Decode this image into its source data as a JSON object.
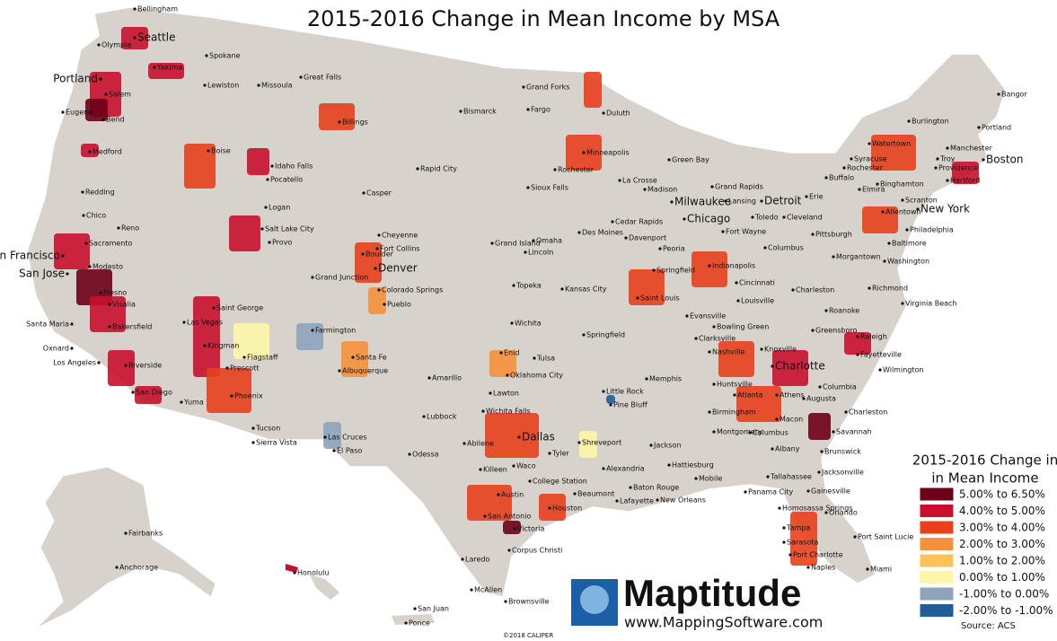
{
  "title": "2015-2016 Change in Mean Income by MSA",
  "legend": {
    "title_lines": [
      "2015-2016 Change in",
      "in Mean Income"
    ],
    "items": [
      {
        "label": "5.00% to 6.50%",
        "color": "#6d0019"
      },
      {
        "label": "4.00% to 5.00%",
        "color": "#c8102e"
      },
      {
        "label": "3.00% to 4.00%",
        "color": "#e8401c"
      },
      {
        "label": "2.00% to 3.00%",
        "color": "#f5913d"
      },
      {
        "label": "1.00% to 2.00%",
        "color": "#fbc25a"
      },
      {
        "label": "0.00% to 1.00%",
        "color": "#fdf6a8"
      },
      {
        "label": "-1.00% to 0.00%",
        "color": "#8fa3bd"
      },
      {
        "label": "-2.00% to -1.00%",
        "color": "#1f5c99"
      }
    ]
  },
  "places": [
    "Bellingham",
    "Seattle",
    "Olympia",
    "Yakima",
    "Spokane",
    "Portland",
    "Salem",
    "Eugene",
    "Bend",
    "Medford",
    "Lewiston",
    "Missoula",
    "Great Falls",
    "Billings",
    "Boise",
    "Idaho Falls",
    "Pocatello",
    "Logan",
    "Salt Lake City",
    "Provo",
    "Casper",
    "Rapid City",
    "Bismarck",
    "Grand Forks",
    "Fargo",
    "Duluth",
    "Minneapolis",
    "Rochester",
    "La Crosse",
    "Green Bay",
    "Madison",
    "Milwaukee",
    "Sioux Falls",
    "Grand Rapids",
    "Lansing",
    "Detroit",
    "Toledo",
    "Cleveland",
    "Erie",
    "Buffalo",
    "Rochester",
    "Syracuse",
    "Watertown",
    "Burlington",
    "Portland",
    "Bangor",
    "Manchester",
    "Troy",
    "Providence",
    "Boston",
    "Hartford",
    "Binghamton",
    "Elmira",
    "Scranton",
    "Allentown",
    "New York",
    "Philadelphia",
    "Pittsburgh",
    "Baltimore",
    "Washington",
    "Morgantown",
    "Columbus",
    "Fort Wayne",
    "Chicago",
    "Cedar Rapids",
    "Des Moines",
    "Davenport",
    "Peoria",
    "Springfield",
    "Indianapolis",
    "Cincinnati",
    "Louisville",
    "Omaha",
    "Lincoln",
    "Grand Island",
    "Topeka",
    "Kansas City",
    "Saint Louis",
    "Evansville",
    "Charleston",
    "Richmond",
    "Virginia Beach",
    "Roanoke",
    "Bowling Green",
    "Clarksville",
    "Nashville",
    "Knoxville",
    "Greensboro",
    "Raleigh",
    "Fayetteville",
    "Wilmington",
    "Charlotte",
    "Huntsville",
    "Memphis",
    "Athens",
    "Augusta",
    "Atlanta",
    "Columbia",
    "Charleston",
    "Birmingham",
    "Macon",
    "Savannah",
    "Montgomery",
    "Columbus",
    "Albany",
    "Brunswick",
    "Jacksonville",
    "Tallahassee",
    "Gainesville",
    "Mobile",
    "Hattiesburg",
    "Jackson",
    "Panama City",
    "Homosassa Springs",
    "Orlando",
    "Tampa",
    "Sarasota",
    "Port Saint Lucie",
    "Port Charlotte",
    "Naples",
    "Miami",
    "Baton Rouge",
    "New Orleans",
    "Lafayette",
    "Alexandria",
    "Shreveport",
    "Little Rock",
    "Pine Bluff",
    "Springfield",
    "Tulsa",
    "Oklahoma City",
    "Enid",
    "Wichita",
    "Lawton",
    "Wichita Falls",
    "Amarillo",
    "Lubbock",
    "Abilene",
    "Dallas",
    "Tyler",
    "Waco",
    "Killeen",
    "College Station",
    "Austin",
    "Beaumont",
    "Houston",
    "San Antonio",
    "Victoria",
    "Corpus Christi",
    "Laredo",
    "McAllen",
    "Brownsville",
    "Odessa",
    "El Paso",
    "Las Cruces",
    "Sierra Vista",
    "Tucson",
    "Yuma",
    "Phoenix",
    "Prescott",
    "Flagstaff",
    "Kingman",
    "Las Vegas",
    "Saint George",
    "Farmington",
    "Santa Fe",
    "Albuquerque",
    "Grand Junction",
    "Pueblo",
    "Colorado Springs",
    "Denver",
    "Boulder",
    "Fort Collins",
    "Cheyenne",
    "San Diego",
    "Riverside",
    "Los Angeles",
    "Oxnard",
    "Bakersfield",
    "Santa Maria",
    "Visalia",
    "Fresno",
    "San Jose",
    "San Francisco",
    "Modesto",
    "Sacramento",
    "Reno",
    "Chico",
    "Redding",
    "Fairbanks",
    "Anchorage",
    "Honolulu",
    "San Juan",
    "Ponce"
  ],
  "logo": {
    "name": "Maptitude",
    "url": "www.MappingSoftware.com"
  },
  "copyright": "©2018 CALIPER",
  "source": "Source: ACS"
}
